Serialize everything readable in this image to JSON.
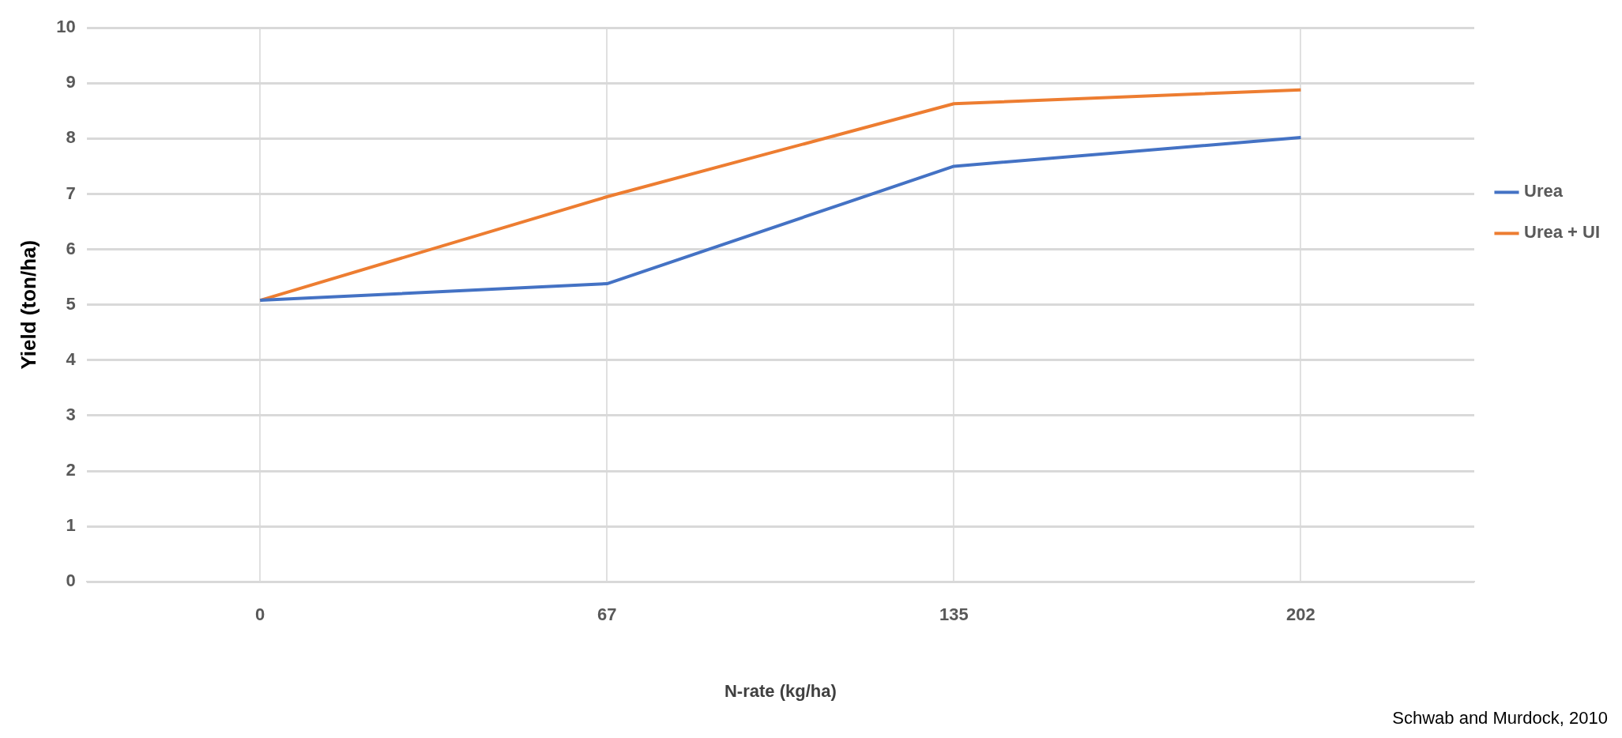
{
  "chart_data": {
    "type": "line",
    "xlabel": "N-rate (kg/ha)",
    "ylabel": "Yield (ton/ha)",
    "categories": [
      "0",
      "67",
      "135",
      "202"
    ],
    "series": [
      {
        "name": "Urea",
        "color": "#4472c4",
        "values": [
          5.08,
          5.38,
          7.5,
          8.02
        ]
      },
      {
        "name": "Urea + UI",
        "color": "#ed7d31",
        "values": [
          5.08,
          6.95,
          8.63,
          8.88
        ]
      }
    ],
    "ylim": [
      0,
      10
    ],
    "yticks": [
      0,
      1,
      2,
      3,
      4,
      5,
      6,
      7,
      8,
      9,
      10
    ],
    "grid": true,
    "legend": "right",
    "marker": "none",
    "line_style": "solid",
    "annotations": [
      "Schwab and Murdock, 2010"
    ]
  }
}
